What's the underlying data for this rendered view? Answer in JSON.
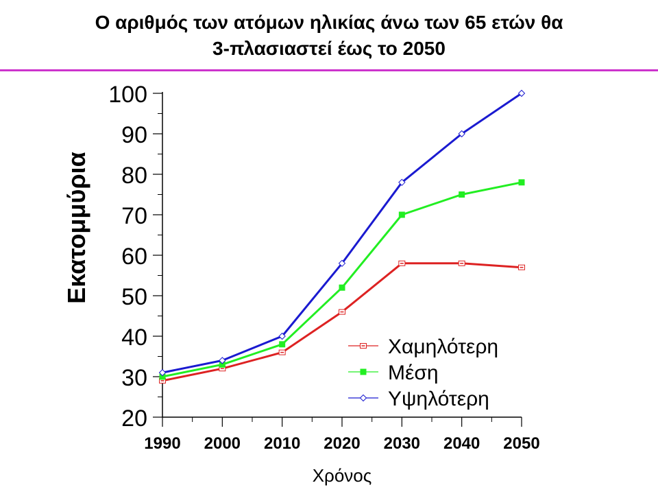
{
  "slide": {
    "title_line1": "Ο αριθμός των ατόμων ηλικίας άνω των 65 ετών θα",
    "title_line2": "3-πλασιαστεί έως το 2050",
    "rule_color": "#cc33cc"
  },
  "chart_data": {
    "type": "line",
    "title": "Ο αριθμός των ατόμων ηλικίας άνω των 65 ετών θα 3-πλασιαστεί έως το 2050",
    "xlabel": "Χρόνος",
    "ylabel": "Εκατομμύρια",
    "x": [
      1990,
      2000,
      2010,
      2020,
      2030,
      2040,
      2050
    ],
    "xlim": [
      1990,
      2050
    ],
    "ylim": [
      20,
      100
    ],
    "y_ticks": [
      20,
      30,
      40,
      50,
      60,
      70,
      80,
      90,
      100
    ],
    "grid": false,
    "legend_position": "bottom-right",
    "series": [
      {
        "name": "Χαμηλότερη",
        "color": "#dd2222",
        "marker": "circle-open",
        "values": [
          29,
          32,
          36,
          46,
          58,
          58,
          57
        ]
      },
      {
        "name": "Μέση",
        "color": "#22ee22",
        "marker": "square-filled",
        "values": [
          30,
          33,
          38,
          52,
          70,
          75,
          78
        ]
      },
      {
        "name": "Υψηλότερη",
        "color": "#1a1ad0",
        "marker": "diamond-open",
        "values": [
          31,
          34,
          40,
          58,
          78,
          90,
          100
        ]
      }
    ]
  }
}
